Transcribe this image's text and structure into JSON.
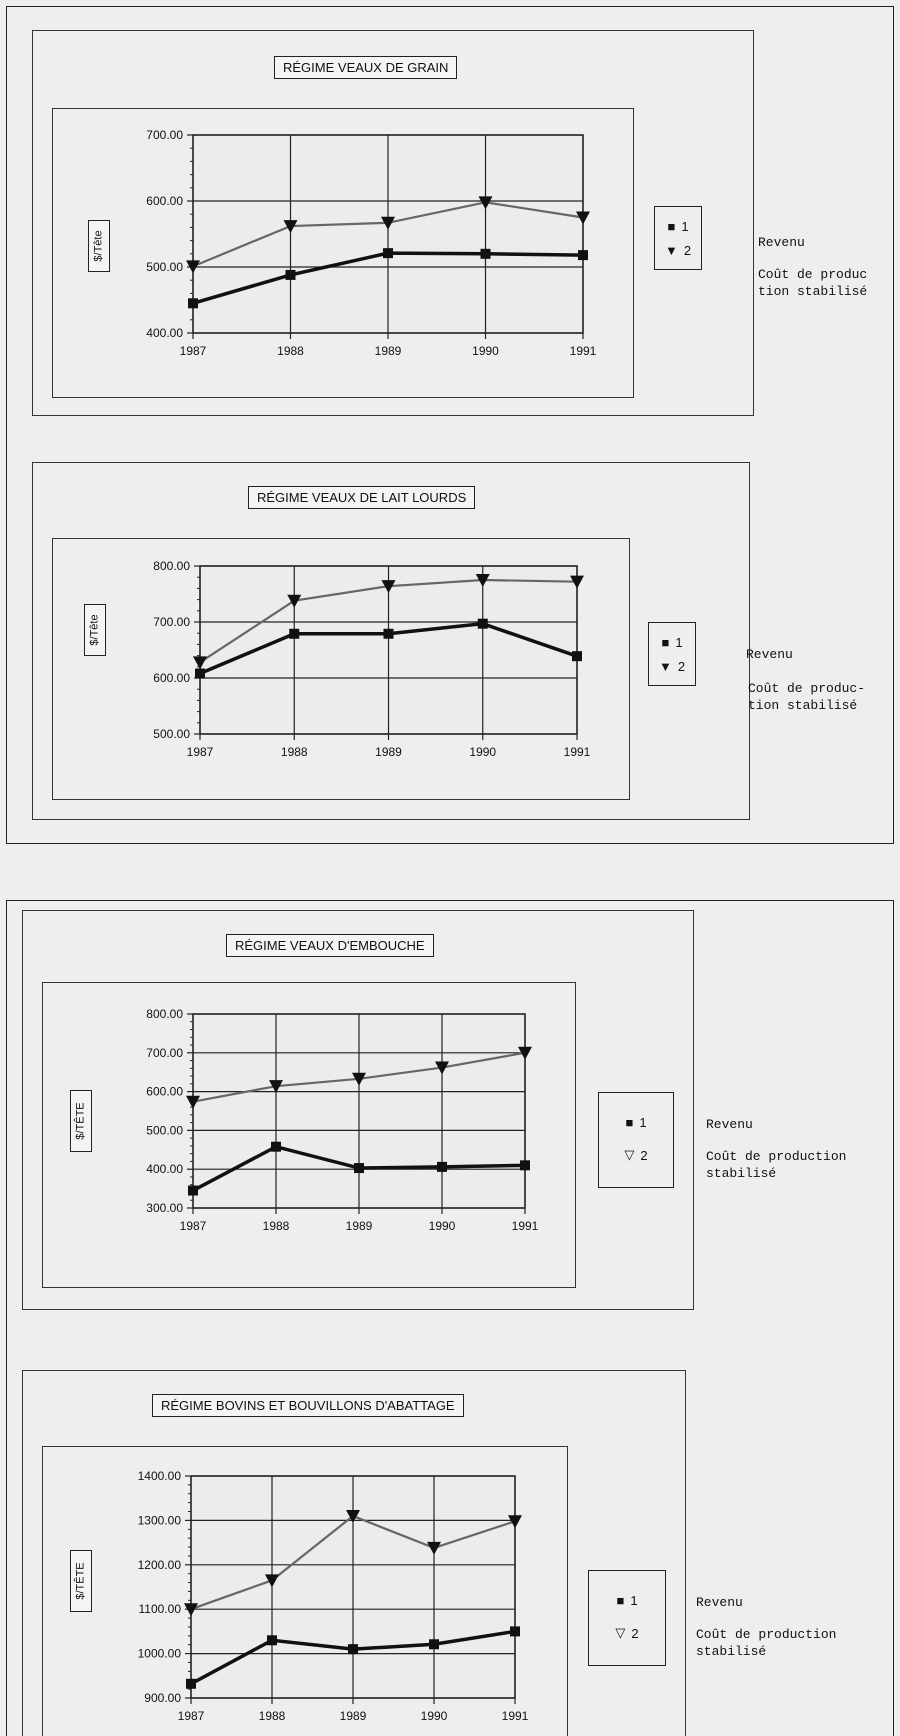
{
  "legend_codes": [
    "1",
    "2"
  ],
  "legend_text": {
    "revenu": "Revenu",
    "cout_split_1": "Coût de produc\ntion stabilisé",
    "cout_split_2": "Coût de produc-\ntion stabilisé",
    "cout_split_3": "Coût de production\nstabilisé"
  },
  "series_colors": {
    "revenu": "#111111",
    "cout": "#666666"
  },
  "chart_data": [
    {
      "type": "line",
      "title": "RÉGIME VEAUX DE GRAIN",
      "ylabel": "$/Tête",
      "xlabel": "",
      "x": [
        "1987",
        "1988",
        "1989",
        "1990",
        "1991"
      ],
      "ylim": [
        400,
        700
      ],
      "yticks": [
        "700.00",
        "600.00",
        "500.00",
        "400.00"
      ],
      "series": [
        {
          "name": "1",
          "marker": "square",
          "values": [
            445,
            488,
            521,
            520,
            518
          ]
        },
        {
          "name": "2",
          "marker": "triangle",
          "values": [
            501,
            562,
            567,
            598,
            575
          ]
        }
      ],
      "legend": "right",
      "grid": true
    },
    {
      "type": "line",
      "title": "RÉGIME VEAUX DE LAIT LOURDS",
      "ylabel": "$/Tête",
      "xlabel": "",
      "x": [
        "1987",
        "1988",
        "1989",
        "1990",
        "1991"
      ],
      "ylim": [
        500,
        800
      ],
      "yticks": [
        "800.00",
        "700.00",
        "600.00",
        "500.00"
      ],
      "series": [
        {
          "name": "1",
          "marker": "square",
          "values": [
            608,
            679,
            679,
            697,
            639
          ]
        },
        {
          "name": "2",
          "marker": "triangle",
          "values": [
            628,
            738,
            764,
            775,
            772
          ]
        }
      ],
      "legend": "right",
      "grid": true
    },
    {
      "type": "line",
      "title": "RÉGIME VEAUX D'EMBOUCHE",
      "ylabel": "$/TÊTE",
      "xlabel": "",
      "x": [
        "1987",
        "1988",
        "1989",
        "1990",
        "1991"
      ],
      "ylim": [
        300,
        800
      ],
      "yticks": [
        "800.00",
        "700.00",
        "600.00",
        "500.00",
        "400.00",
        "300.00"
      ],
      "series": [
        {
          "name": "1",
          "marker": "square",
          "values": [
            345,
            458,
            403,
            406,
            410
          ]
        },
        {
          "name": "2",
          "marker": "triangle",
          "values": [
            574,
            614,
            633,
            662,
            700
          ]
        }
      ],
      "legend": "right",
      "grid": true
    },
    {
      "type": "line",
      "title": "RÉGIME BOVINS ET BOUVILLONS D'ABATTAGE",
      "ylabel": "$/TÊTE",
      "xlabel": "",
      "x": [
        "1987",
        "1988",
        "1989",
        "1990",
        "1991"
      ],
      "ylim": [
        900,
        1400
      ],
      "yticks": [
        "1400.00",
        "1300.00",
        "1200.00",
        "1100.00",
        "1000.00",
        "900.00"
      ],
      "series": [
        {
          "name": "1",
          "marker": "square",
          "values": [
            932,
            1030,
            1010,
            1021,
            1050
          ]
        },
        {
          "name": "2",
          "marker": "triangle",
          "values": [
            1100,
            1165,
            1310,
            1238,
            1298
          ]
        }
      ],
      "legend": "right",
      "grid": true
    }
  ]
}
